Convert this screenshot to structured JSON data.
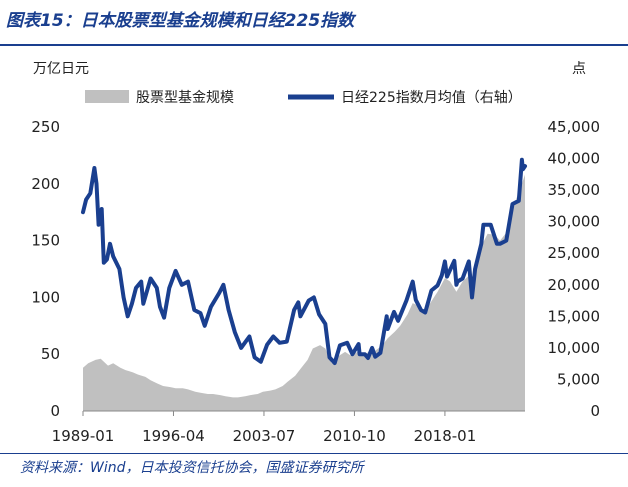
{
  "header": {
    "title": "图表15：日本股票型基金规模和日经225指数"
  },
  "footer": {
    "source": "资料来源：Wind，日本投资信托协会，国盛证券研究所"
  },
  "chart_data": {
    "type": "area",
    "left_unit": "万亿日元",
    "right_unit": "点",
    "x_ticks": [
      "1989-01",
      "1996-04",
      "2003-07",
      "2010-10",
      "2018-01"
    ],
    "y_left_ticks": [
      "0",
      "50",
      "100",
      "150",
      "200",
      "250"
    ],
    "y_right_ticks": [
      "0",
      "5,000",
      "10,000",
      "15,000",
      "20,000",
      "25,000",
      "30,000",
      "35,000",
      "40,000",
      "45,000"
    ],
    "ylim_left": [
      0,
      250
    ],
    "ylim_right": [
      0,
      45000
    ],
    "xlim": [
      "1989-01",
      "2024-06"
    ],
    "legend": [
      "股票型基金规模",
      "日经225指数月均值（右轴）"
    ],
    "colors": {
      "fund_area": "#c0c0c0",
      "nikkei_line": "#1a3f8f",
      "title_blue": "#1a3f8f"
    },
    "series": [
      {
        "name": "股票型基金规模",
        "axis": "left",
        "points": [
          [
            "1989-01",
            38
          ],
          [
            "1989-06",
            42
          ],
          [
            "1990-01",
            45
          ],
          [
            "1990-06",
            46
          ],
          [
            "1991-01",
            40
          ],
          [
            "1991-06",
            42
          ],
          [
            "1992-01",
            38
          ],
          [
            "1992-06",
            36
          ],
          [
            "1993-01",
            34
          ],
          [
            "1993-06",
            32
          ],
          [
            "1994-01",
            30
          ],
          [
            "1994-06",
            27
          ],
          [
            "1995-01",
            24
          ],
          [
            "1995-06",
            22
          ],
          [
            "1996-01",
            21
          ],
          [
            "1996-06",
            20
          ],
          [
            "1997-01",
            20
          ],
          [
            "1997-06",
            19
          ],
          [
            "1998-01",
            17
          ],
          [
            "1998-06",
            16
          ],
          [
            "1999-01",
            15
          ],
          [
            "1999-06",
            15
          ],
          [
            "2000-01",
            14
          ],
          [
            "2000-06",
            13
          ],
          [
            "2001-01",
            12
          ],
          [
            "2001-06",
            12
          ],
          [
            "2002-01",
            13
          ],
          [
            "2002-06",
            14
          ],
          [
            "2003-01",
            15
          ],
          [
            "2003-06",
            17
          ],
          [
            "2004-01",
            18
          ],
          [
            "2004-06",
            19
          ],
          [
            "2005-01",
            22
          ],
          [
            "2005-06",
            26
          ],
          [
            "2006-01",
            31
          ],
          [
            "2006-06",
            37
          ],
          [
            "2007-01",
            45
          ],
          [
            "2007-06",
            55
          ],
          [
            "2008-01",
            58
          ],
          [
            "2008-06",
            55
          ],
          [
            "2008-12",
            42
          ],
          [
            "2009-06",
            48
          ],
          [
            "2010-01",
            52
          ],
          [
            "2010-06",
            49
          ],
          [
            "2011-01",
            52
          ],
          [
            "2011-06",
            50
          ],
          [
            "2012-01",
            52
          ],
          [
            "2012-06",
            53
          ],
          [
            "2013-01",
            58
          ],
          [
            "2013-06",
            64
          ],
          [
            "2014-01",
            70
          ],
          [
            "2014-06",
            75
          ],
          [
            "2015-01",
            85
          ],
          [
            "2015-06",
            95
          ],
          [
            "2016-01",
            92
          ],
          [
            "2016-06",
            88
          ],
          [
            "2017-01",
            98
          ],
          [
            "2017-06",
            105
          ],
          [
            "2018-01",
            117
          ],
          [
            "2018-06",
            114
          ],
          [
            "2018-12",
            105
          ],
          [
            "2019-06",
            114
          ],
          [
            "2020-01",
            120
          ],
          [
            "2020-03",
            108
          ],
          [
            "2020-09",
            133
          ],
          [
            "2021-01",
            147
          ],
          [
            "2021-06",
            156
          ],
          [
            "2022-01",
            155
          ],
          [
            "2022-06",
            150
          ],
          [
            "2023-01",
            158
          ],
          [
            "2023-06",
            178
          ],
          [
            "2024-01",
            195
          ],
          [
            "2024-06",
            208
          ]
        ]
      },
      {
        "name": "日经225指数月均值（右轴）",
        "axis": "right",
        "points": [
          [
            "1989-01",
            31500
          ],
          [
            "1989-04",
            33500
          ],
          [
            "1989-08",
            34500
          ],
          [
            "1989-12",
            38500
          ],
          [
            "1990-02",
            36000
          ],
          [
            "1990-04",
            29500
          ],
          [
            "1990-07",
            32000
          ],
          [
            "1990-09",
            23500
          ],
          [
            "1990-12",
            24000
          ],
          [
            "1991-03",
            26500
          ],
          [
            "1991-06",
            24500
          ],
          [
            "1991-12",
            22500
          ],
          [
            "1992-04",
            18000
          ],
          [
            "1992-08",
            15000
          ],
          [
            "1992-12",
            17000
          ],
          [
            "1993-04",
            19500
          ],
          [
            "1993-09",
            20500
          ],
          [
            "1993-11",
            17000
          ],
          [
            "1994-06",
            21000
          ],
          [
            "1994-12",
            19500
          ],
          [
            "1995-03",
            16500
          ],
          [
            "1995-07",
            14800
          ],
          [
            "1995-12",
            19500
          ],
          [
            "1996-06",
            22200
          ],
          [
            "1996-12",
            20000
          ],
          [
            "1997-06",
            20500
          ],
          [
            "1997-12",
            16000
          ],
          [
            "1998-06",
            15500
          ],
          [
            "1998-10",
            13500
          ],
          [
            "1999-04",
            16500
          ],
          [
            "1999-12",
            18700
          ],
          [
            "2000-04",
            20000
          ],
          [
            "2000-09",
            16000
          ],
          [
            "2001-03",
            12500
          ],
          [
            "2001-09",
            10000
          ],
          [
            "2002-05",
            11800
          ],
          [
            "2002-10",
            8500
          ],
          [
            "2003-04",
            7800
          ],
          [
            "2003-10",
            10500
          ],
          [
            "2004-04",
            11800
          ],
          [
            "2004-10",
            10800
          ],
          [
            "2005-05",
            11000
          ],
          [
            "2005-12",
            16000
          ],
          [
            "2006-04",
            17200
          ],
          [
            "2006-06",
            15000
          ],
          [
            "2007-02",
            17500
          ],
          [
            "2007-07",
            18000
          ],
          [
            "2007-12",
            15300
          ],
          [
            "2008-06",
            13800
          ],
          [
            "2008-10",
            8500
          ],
          [
            "2009-03",
            7600
          ],
          [
            "2009-08",
            10400
          ],
          [
            "2010-03",
            10800
          ],
          [
            "2010-08",
            9000
          ],
          [
            "2011-02",
            10600
          ],
          [
            "2011-03",
            9000
          ],
          [
            "2011-08",
            9000
          ],
          [
            "2011-11",
            8400
          ],
          [
            "2012-03",
            10000
          ],
          [
            "2012-06",
            8600
          ],
          [
            "2012-11",
            9200
          ],
          [
            "2013-05",
            15000
          ],
          [
            "2013-06",
            13000
          ],
          [
            "2013-12",
            15700
          ],
          [
            "2014-04",
            14300
          ],
          [
            "2014-12",
            17500
          ],
          [
            "2015-06",
            20500
          ],
          [
            "2015-09",
            17600
          ],
          [
            "2016-02",
            16000
          ],
          [
            "2016-06",
            15600
          ],
          [
            "2016-12",
            19100
          ],
          [
            "2017-06",
            19900
          ],
          [
            "2017-10",
            21500
          ],
          [
            "2018-01",
            23700
          ],
          [
            "2018-03",
            21300
          ],
          [
            "2018-10",
            23800
          ],
          [
            "2018-12",
            20000
          ],
          [
            "2019-01",
            20500
          ],
          [
            "2019-06",
            21000
          ],
          [
            "2019-12",
            23700
          ],
          [
            "2020-03",
            18000
          ],
          [
            "2020-06",
            22500
          ],
          [
            "2020-12",
            26500
          ],
          [
            "2021-02",
            29500
          ],
          [
            "2021-09",
            29500
          ],
          [
            "2022-03",
            26500
          ],
          [
            "2022-06",
            26500
          ],
          [
            "2022-12",
            27000
          ],
          [
            "2023-06",
            32800
          ],
          [
            "2023-12",
            33300
          ],
          [
            "2024-03",
            39800
          ],
          [
            "2024-04",
            38300
          ],
          [
            "2024-06",
            38800
          ]
        ]
      }
    ]
  }
}
